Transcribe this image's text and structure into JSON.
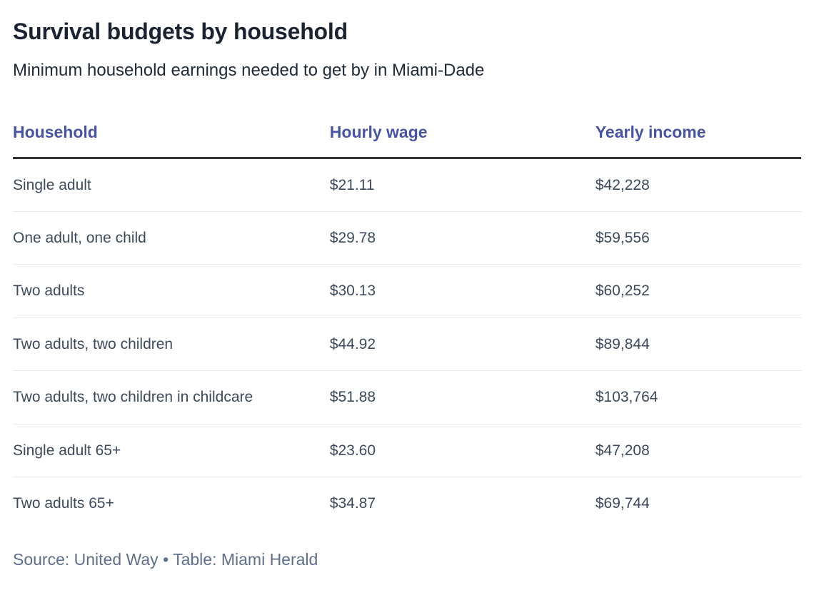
{
  "title": "Survival budgets by household",
  "subtitle": "Minimum household earnings needed to get by in Miami-Dade",
  "colors": {
    "header_accent": "#4753a6",
    "title_text": "#1a2332",
    "body_text": "#3d4a5d",
    "footer_text": "#5e6e8c",
    "header_rule": "#333333",
    "row_divider": "#ebebeb"
  },
  "table": {
    "columns": [
      "Household",
      "Hourly wage",
      "Yearly income"
    ],
    "rows": [
      {
        "household": "Single adult",
        "hourly_wage": "$21.11",
        "yearly_income": "$42,228"
      },
      {
        "household": "One adult, one child",
        "hourly_wage": "$29.78",
        "yearly_income": "$59,556"
      },
      {
        "household": "Two adults",
        "hourly_wage": "$30.13",
        "yearly_income": "$60,252"
      },
      {
        "household": "Two adults, two children",
        "hourly_wage": "$44.92",
        "yearly_income": "$89,844"
      },
      {
        "household": "Two adults, two children in childcare",
        "hourly_wage": "$51.88",
        "yearly_income": "$103,764"
      },
      {
        "household": "Single adult 65+",
        "hourly_wage": "$23.60",
        "yearly_income": "$47,208"
      },
      {
        "household": "Two adults 65+",
        "hourly_wage": "$34.87",
        "yearly_income": "$69,744"
      }
    ]
  },
  "footer": {
    "text": "Source: United Way • Table: Miami Herald"
  },
  "chart_data": {
    "type": "table",
    "title": "Survival budgets by household",
    "subtitle": "Minimum household earnings needed to get by in Miami-Dade",
    "columns": [
      "Household",
      "Hourly wage",
      "Yearly income"
    ],
    "categories": [
      "Single adult",
      "One adult, one child",
      "Two adults",
      "Two adults, two children",
      "Two adults, two children in childcare",
      "Single adult 65+",
      "Two adults 65+"
    ],
    "series": [
      {
        "name": "Hourly wage",
        "values": [
          21.11,
          29.78,
          30.13,
          44.92,
          51.88,
          23.6,
          34.87
        ]
      },
      {
        "name": "Yearly income",
        "values": [
          42228,
          59556,
          60252,
          89844,
          103764,
          47208,
          69744
        ]
      }
    ],
    "source": "Source: United Way • Table: Miami Herald"
  }
}
